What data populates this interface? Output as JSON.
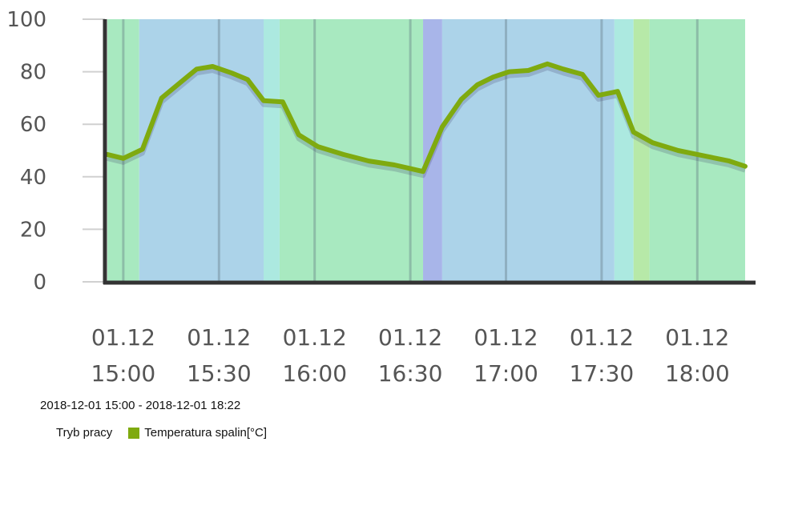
{
  "chart_data": {
    "type": "line",
    "y_ticks": [
      "0",
      "20",
      "40",
      "60",
      "80",
      "100"
    ],
    "ylim": [
      0,
      100
    ],
    "x_range_minutes_from_first_tick": [
      -5,
      195
    ],
    "x_ticks": [
      {
        "date": "01.12",
        "time": "15:00"
      },
      {
        "date": "01.12",
        "time": "15:30"
      },
      {
        "date": "01.12",
        "time": "16:00"
      },
      {
        "date": "01.12",
        "time": "16:30"
      },
      {
        "date": "01.12",
        "time": "17:00"
      },
      {
        "date": "01.12",
        "time": "17:30"
      },
      {
        "date": "01.12",
        "time": "18:00"
      }
    ],
    "mode_bands": [
      {
        "from": "14:55",
        "to": "15:05",
        "color": "#a8e9c0"
      },
      {
        "from": "15:05",
        "to": "15:44",
        "color": "#acd3e9"
      },
      {
        "from": "15:44",
        "to": "15:49",
        "color": "#ace9e0"
      },
      {
        "from": "15:49",
        "to": "16:34",
        "color": "#a8e9c0"
      },
      {
        "from": "16:34",
        "to": "16:40",
        "color": "#a8b5e9"
      },
      {
        "from": "16:40",
        "to": "17:34",
        "color": "#acd3e9"
      },
      {
        "from": "17:34",
        "to": "17:40",
        "color": "#ace9e0"
      },
      {
        "from": "17:40",
        "to": "17:45",
        "color": "#b7e9a8"
      },
      {
        "from": "17:45",
        "to": "18:15",
        "color": "#a8e9c0"
      }
    ],
    "series": [
      {
        "name": "Temperatura spalin[°C]",
        "color": "#7faa0f",
        "points": [
          {
            "x": "14:55",
            "y": 48.5
          },
          {
            "x": "15:00",
            "y": 47
          },
          {
            "x": "15:06",
            "y": 50.5
          },
          {
            "x": "15:12",
            "y": 70
          },
          {
            "x": "15:18",
            "y": 76
          },
          {
            "x": "15:23",
            "y": 81
          },
          {
            "x": "15:28",
            "y": 82
          },
          {
            "x": "15:34",
            "y": 79.5
          },
          {
            "x": "15:39",
            "y": 77
          },
          {
            "x": "15:44",
            "y": 69
          },
          {
            "x": "15:50",
            "y": 68.5
          },
          {
            "x": "15:55",
            "y": 56
          },
          {
            "x": "16:01",
            "y": 51.5
          },
          {
            "x": "16:09",
            "y": 48.5
          },
          {
            "x": "16:17",
            "y": 46
          },
          {
            "x": "16:25",
            "y": 44.5
          },
          {
            "x": "16:34",
            "y": 42
          },
          {
            "x": "16:40",
            "y": 59
          },
          {
            "x": "16:46",
            "y": 69.5
          },
          {
            "x": "16:51",
            "y": 75
          },
          {
            "x": "16:56",
            "y": 78
          },
          {
            "x": "17:01",
            "y": 80
          },
          {
            "x": "17:07",
            "y": 80.5
          },
          {
            "x": "17:13",
            "y": 83
          },
          {
            "x": "17:18",
            "y": 81
          },
          {
            "x": "17:24",
            "y": 79
          },
          {
            "x": "17:29",
            "y": 71
          },
          {
            "x": "17:35",
            "y": 72.5
          },
          {
            "x": "17:40",
            "y": 57
          },
          {
            "x": "17:46",
            "y": 53
          },
          {
            "x": "17:54",
            "y": 50
          },
          {
            "x": "18:02",
            "y": 48
          },
          {
            "x": "18:10",
            "y": 46
          },
          {
            "x": "18:15",
            "y": 44
          }
        ]
      }
    ],
    "legend_position": "bottom-left",
    "grid": {
      "horizontal": true,
      "vertical": true
    }
  },
  "date_range": "2018-12-01 15:00 - 2018-12-01 18:22",
  "legend": {
    "mode_label": "Tryb pracy",
    "series_label": "Temperatura spalin[°C]",
    "series_color": "#7faa0f"
  }
}
